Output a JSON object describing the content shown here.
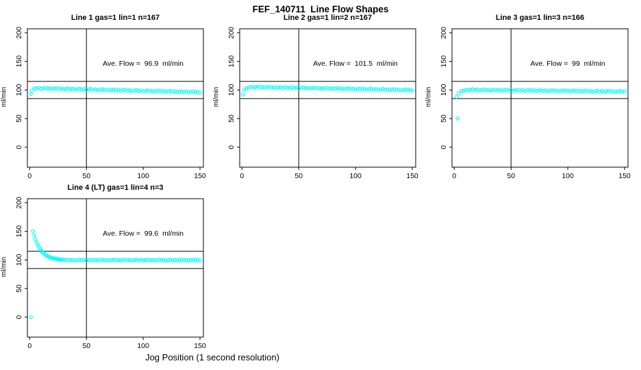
{
  "header": {
    "title": "FEF_140711  Line Flow Shapes"
  },
  "footer": {
    "xlabel": "Jog Position (1 second resolution)"
  },
  "chart_data": [
    {
      "type": "scatter",
      "title": "Line 1 gas=1 lin=1 n=167",
      "annotation": "Ave. Flow =  96.9  ml/min",
      "ave_flow_ml_min": 96.9,
      "n": 167,
      "ylabel": "ml/min",
      "x_ticks": [
        0,
        50,
        100,
        150
      ],
      "y_ticks": [
        0,
        50,
        100,
        150,
        200
      ],
      "xlim": [
        -2,
        153
      ],
      "ylim": [
        -35,
        207
      ],
      "vline_x": 50,
      "hlines_y": [
        85,
        115
      ],
      "marker_color": "#00FFFF",
      "points": [
        [
          1,
          93
        ],
        [
          2,
          99
        ],
        [
          4,
          102.2
        ],
        [
          6,
          102.7
        ],
        [
          8,
          103.6
        ],
        [
          10,
          102
        ],
        [
          12,
          102.9
        ],
        [
          14,
          103.8
        ],
        [
          16,
          102.2
        ],
        [
          18,
          103.1
        ],
        [
          20,
          101.5
        ],
        [
          22,
          102.4
        ],
        [
          24,
          103.3
        ],
        [
          26,
          101.7
        ],
        [
          28,
          102.6
        ],
        [
          30,
          101
        ],
        [
          32,
          101.9
        ],
        [
          34,
          102.8
        ],
        [
          36,
          101.2
        ],
        [
          38,
          102.1
        ],
        [
          40,
          100.5
        ],
        [
          42,
          101.5
        ],
        [
          44,
          102.4
        ],
        [
          46,
          100.8
        ],
        [
          48,
          101.7
        ],
        [
          50,
          100.1
        ],
        [
          52,
          101
        ],
        [
          54,
          101.9
        ],
        [
          56,
          100.3
        ],
        [
          58,
          101.2
        ],
        [
          60,
          99.6
        ],
        [
          62,
          100.5
        ],
        [
          64,
          101.4
        ],
        [
          66,
          99.8
        ],
        [
          68,
          100.7
        ],
        [
          70,
          99.1
        ],
        [
          72,
          100
        ],
        [
          74,
          100.9
        ],
        [
          76,
          99.3
        ],
        [
          78,
          100.2
        ],
        [
          80,
          98.6
        ],
        [
          82,
          99.5
        ],
        [
          84,
          100.4
        ],
        [
          86,
          98.8
        ],
        [
          88,
          99.7
        ],
        [
          90,
          98.1
        ],
        [
          92,
          99
        ],
        [
          94,
          99.9
        ],
        [
          96,
          98.3
        ],
        [
          98,
          99.2
        ],
        [
          100,
          97.6
        ],
        [
          102,
          98.5
        ],
        [
          104,
          99.4
        ],
        [
          106,
          97.8
        ],
        [
          108,
          98.7
        ],
        [
          110,
          97.1
        ],
        [
          112,
          98
        ],
        [
          114,
          99
        ],
        [
          116,
          97.4
        ],
        [
          118,
          98.3
        ],
        [
          120,
          96.7
        ],
        [
          122,
          97.6
        ],
        [
          124,
          98.5
        ],
        [
          126,
          96.9
        ],
        [
          128,
          97.8
        ],
        [
          130,
          96.2
        ],
        [
          132,
          97.1
        ],
        [
          134,
          98
        ],
        [
          136,
          96.4
        ],
        [
          138,
          97.3
        ],
        [
          140,
          95.7
        ],
        [
          142,
          96.6
        ],
        [
          144,
          97.5
        ],
        [
          146,
          95.9
        ],
        [
          148,
          96.8
        ],
        [
          150,
          95.2
        ]
      ]
    },
    {
      "type": "scatter",
      "title": "Line 2 gas=1 lin=2 n=167",
      "annotation": "Ave. Flow =  101.5  ml/min",
      "ave_flow_ml_min": 101.5,
      "n": 167,
      "ylabel": "ml/min",
      "x_ticks": [
        0,
        50,
        100,
        150
      ],
      "y_ticks": [
        0,
        50,
        100,
        150,
        200
      ],
      "xlim": [
        -2,
        153
      ],
      "ylim": [
        -35,
        207
      ],
      "vline_x": 50,
      "hlines_y": [
        85,
        115
      ],
      "marker_color": "#00FFFF",
      "points": [
        [
          1,
          92
        ],
        [
          2,
          100.5
        ],
        [
          4,
          103.8
        ],
        [
          6,
          103.8
        ],
        [
          8,
          105.8
        ],
        [
          10,
          104.2
        ],
        [
          12,
          105.1
        ],
        [
          14,
          106.1
        ],
        [
          16,
          104.5
        ],
        [
          18,
          105.4
        ],
        [
          20,
          103.8
        ],
        [
          22,
          104.8
        ],
        [
          24,
          105.7
        ],
        [
          26,
          104.1
        ],
        [
          28,
          105
        ],
        [
          30,
          103.5
        ],
        [
          32,
          104.4
        ],
        [
          34,
          105.3
        ],
        [
          36,
          103.7
        ],
        [
          38,
          104.7
        ],
        [
          40,
          103.1
        ],
        [
          42,
          104
        ],
        [
          44,
          104.9
        ],
        [
          46,
          103.4
        ],
        [
          48,
          104.3
        ],
        [
          50,
          102.7
        ],
        [
          52,
          103.6
        ],
        [
          54,
          104.6
        ],
        [
          56,
          103
        ],
        [
          58,
          103.9
        ],
        [
          60,
          102.3
        ],
        [
          62,
          103.3
        ],
        [
          64,
          104.2
        ],
        [
          66,
          102.6
        ],
        [
          68,
          103.5
        ],
        [
          70,
          101.9
        ],
        [
          72,
          102.9
        ],
        [
          74,
          103.8
        ],
        [
          76,
          102.2
        ],
        [
          78,
          103.1
        ],
        [
          80,
          101.6
        ],
        [
          82,
          102.5
        ],
        [
          84,
          103.4
        ],
        [
          86,
          101.8
        ],
        [
          88,
          102.7
        ],
        [
          90,
          101.2
        ],
        [
          92,
          102.1
        ],
        [
          94,
          103
        ],
        [
          96,
          101.4
        ],
        [
          98,
          102.4
        ],
        [
          100,
          100.8
        ],
        [
          102,
          101.7
        ],
        [
          104,
          102.6
        ],
        [
          106,
          101
        ],
        [
          108,
          102
        ],
        [
          110,
          100.4
        ],
        [
          112,
          101.3
        ],
        [
          114,
          102.2
        ],
        [
          116,
          100.7
        ],
        [
          118,
          101.6
        ],
        [
          120,
          100
        ],
        [
          122,
          100.9
        ],
        [
          124,
          101.8
        ],
        [
          126,
          100.3
        ],
        [
          128,
          101.2
        ],
        [
          130,
          99.7
        ],
        [
          132,
          100.6
        ],
        [
          134,
          101.5
        ],
        [
          136,
          99.9
        ],
        [
          138,
          100.8
        ],
        [
          140,
          99.3
        ],
        [
          142,
          100.2
        ],
        [
          144,
          101.1
        ],
        [
          146,
          99.5
        ],
        [
          148,
          100.5
        ],
        [
          150,
          98.9
        ]
      ]
    },
    {
      "type": "scatter",
      "title": "Line 3 gas=1 lin=3 n=166",
      "annotation": "Ave. Flow =  99  ml/min",
      "ave_flow_ml_min": 99,
      "n": 166,
      "ylabel": "ml/min",
      "x_ticks": [
        0,
        50,
        100,
        150
      ],
      "y_ticks": [
        0,
        50,
        100,
        150,
        200
      ],
      "xlim": [
        -2,
        153
      ],
      "ylim": [
        -35,
        207
      ],
      "vline_x": 50,
      "hlines_y": [
        85,
        115
      ],
      "marker_color": "#00FFFF",
      "points": [
        [
          2,
          88
        ],
        [
          3,
          50
        ],
        [
          4,
          94.5
        ],
        [
          6,
          98
        ],
        [
          8,
          98.3
        ],
        [
          10,
          100.3
        ],
        [
          12,
          99.4
        ],
        [
          14,
          100.4
        ],
        [
          16,
          101.3
        ],
        [
          18,
          99.8
        ],
        [
          20,
          100.7
        ],
        [
          22,
          99.2
        ],
        [
          24,
          100.1
        ],
        [
          26,
          101.1
        ],
        [
          28,
          99.5
        ],
        [
          30,
          100.5
        ],
        [
          32,
          98.9
        ],
        [
          34,
          99.9
        ],
        [
          36,
          100.8
        ],
        [
          38,
          99.3
        ],
        [
          40,
          100.3
        ],
        [
          42,
          98.7
        ],
        [
          44,
          99.7
        ],
        [
          46,
          100.6
        ],
        [
          48,
          99.1
        ],
        [
          50,
          100
        ],
        [
          52,
          98.5
        ],
        [
          54,
          99.4
        ],
        [
          56,
          100.4
        ],
        [
          58,
          98.8
        ],
        [
          60,
          99.8
        ],
        [
          62,
          98.2
        ],
        [
          64,
          99.2
        ],
        [
          66,
          100.1
        ],
        [
          68,
          98.6
        ],
        [
          70,
          99.6
        ],
        [
          72,
          98
        ],
        [
          74,
          99
        ],
        [
          76,
          99.9
        ],
        [
          78,
          98.4
        ],
        [
          80,
          99.3
        ],
        [
          82,
          97.8
        ],
        [
          84,
          98.7
        ],
        [
          86,
          99.7
        ],
        [
          88,
          98.1
        ],
        [
          90,
          99.1
        ],
        [
          92,
          97.5
        ],
        [
          94,
          98.5
        ],
        [
          96,
          99.4
        ],
        [
          98,
          97.9
        ],
        [
          100,
          98.9
        ],
        [
          102,
          97.3
        ],
        [
          104,
          98.3
        ],
        [
          106,
          99.2
        ],
        [
          108,
          97.7
        ],
        [
          110,
          98.6
        ],
        [
          112,
          97.1
        ],
        [
          114,
          98
        ],
        [
          116,
          99
        ],
        [
          118,
          97.4
        ],
        [
          120,
          98.4
        ],
        [
          122,
          96.8
        ],
        [
          124,
          97.8
        ],
        [
          126,
          98.8
        ],
        [
          128,
          97.2
        ],
        [
          130,
          98.2
        ],
        [
          132,
          96.6
        ],
        [
          134,
          97.6
        ],
        [
          136,
          98.5
        ],
        [
          138,
          97
        ],
        [
          140,
          97.9
        ],
        [
          142,
          96.4
        ],
        [
          144,
          97.4
        ],
        [
          146,
          98.3
        ],
        [
          148,
          96.8
        ],
        [
          150,
          97.7
        ]
      ]
    },
    {
      "type": "scatter",
      "title": "Line 4 (LT) gas=1 lin=4 n=3",
      "annotation": "Ave. Flow =  99.6  ml/min",
      "ave_flow_ml_min": 99.6,
      "n": 3,
      "ylabel": "ml/min",
      "x_ticks": [
        0,
        50,
        100,
        150
      ],
      "y_ticks": [
        0,
        50,
        100,
        150,
        200
      ],
      "xlim": [
        -2,
        153
      ],
      "ylim": [
        -35,
        207
      ],
      "vline_x": 50,
      "hlines_y": [
        85,
        115
      ],
      "marker_color": "#00FFFF",
      "points": [
        [
          1,
          0
        ],
        [
          3,
          150
        ],
        [
          4,
          142.8
        ],
        [
          5,
          136.6
        ],
        [
          6,
          131.3
        ],
        [
          7,
          126.8
        ],
        [
          8,
          122.9
        ],
        [
          9,
          119.5
        ],
        [
          10,
          116.4
        ],
        [
          11,
          114.2
        ],
        [
          12,
          112.1
        ],
        [
          13,
          110.3
        ],
        [
          14,
          108.8
        ],
        [
          15,
          107.5
        ],
        [
          16,
          106.3
        ],
        [
          17,
          105.4
        ],
        [
          18,
          104.5
        ],
        [
          19,
          103.8
        ],
        [
          20,
          103.2
        ],
        [
          21,
          102.7
        ],
        [
          22,
          102.2
        ],
        [
          23,
          101.8
        ],
        [
          24,
          101.5
        ],
        [
          25,
          101.2
        ],
        [
          26,
          101
        ],
        [
          27,
          100.8
        ],
        [
          28,
          100.6
        ],
        [
          29,
          100.4
        ],
        [
          30,
          100.3
        ],
        [
          32,
          99.6
        ],
        [
          34,
          100.4
        ],
        [
          36,
          99.2
        ],
        [
          38,
          100
        ],
        [
          40,
          98.8
        ],
        [
          42,
          99.6
        ],
        [
          44,
          100.4
        ],
        [
          46,
          99.2
        ],
        [
          48,
          100
        ],
        [
          50,
          98.8
        ],
        [
          52,
          99.6
        ],
        [
          54,
          100.4
        ],
        [
          56,
          99.2
        ],
        [
          58,
          100
        ],
        [
          60,
          98.8
        ],
        [
          62,
          99.6
        ],
        [
          64,
          100.4
        ],
        [
          66,
          99.2
        ],
        [
          68,
          100
        ],
        [
          70,
          98.8
        ],
        [
          72,
          99.6
        ],
        [
          74,
          100.4
        ],
        [
          76,
          99.2
        ],
        [
          78,
          100
        ],
        [
          80,
          98.8
        ],
        [
          82,
          99.6
        ],
        [
          84,
          100.4
        ],
        [
          86,
          99.2
        ],
        [
          88,
          100
        ],
        [
          90,
          98.8
        ],
        [
          92,
          99.6
        ],
        [
          94,
          100.4
        ],
        [
          96,
          99.2
        ],
        [
          98,
          100
        ],
        [
          100,
          98.8
        ],
        [
          102,
          99.6
        ],
        [
          104,
          100.4
        ],
        [
          106,
          99.2
        ],
        [
          108,
          100
        ],
        [
          110,
          98.8
        ],
        [
          112,
          99.6
        ],
        [
          114,
          100.4
        ],
        [
          116,
          99.2
        ],
        [
          118,
          100
        ],
        [
          120,
          98.8
        ],
        [
          122,
          99.6
        ],
        [
          124,
          100.4
        ],
        [
          126,
          99.2
        ],
        [
          128,
          100
        ],
        [
          130,
          98.8
        ],
        [
          132,
          99.6
        ],
        [
          134,
          100.4
        ],
        [
          136,
          99.2
        ],
        [
          138,
          100
        ],
        [
          140,
          98.8
        ],
        [
          142,
          99.6
        ],
        [
          144,
          100.4
        ],
        [
          146,
          99.2
        ],
        [
          148,
          100
        ],
        [
          150,
          98.8
        ]
      ]
    }
  ]
}
